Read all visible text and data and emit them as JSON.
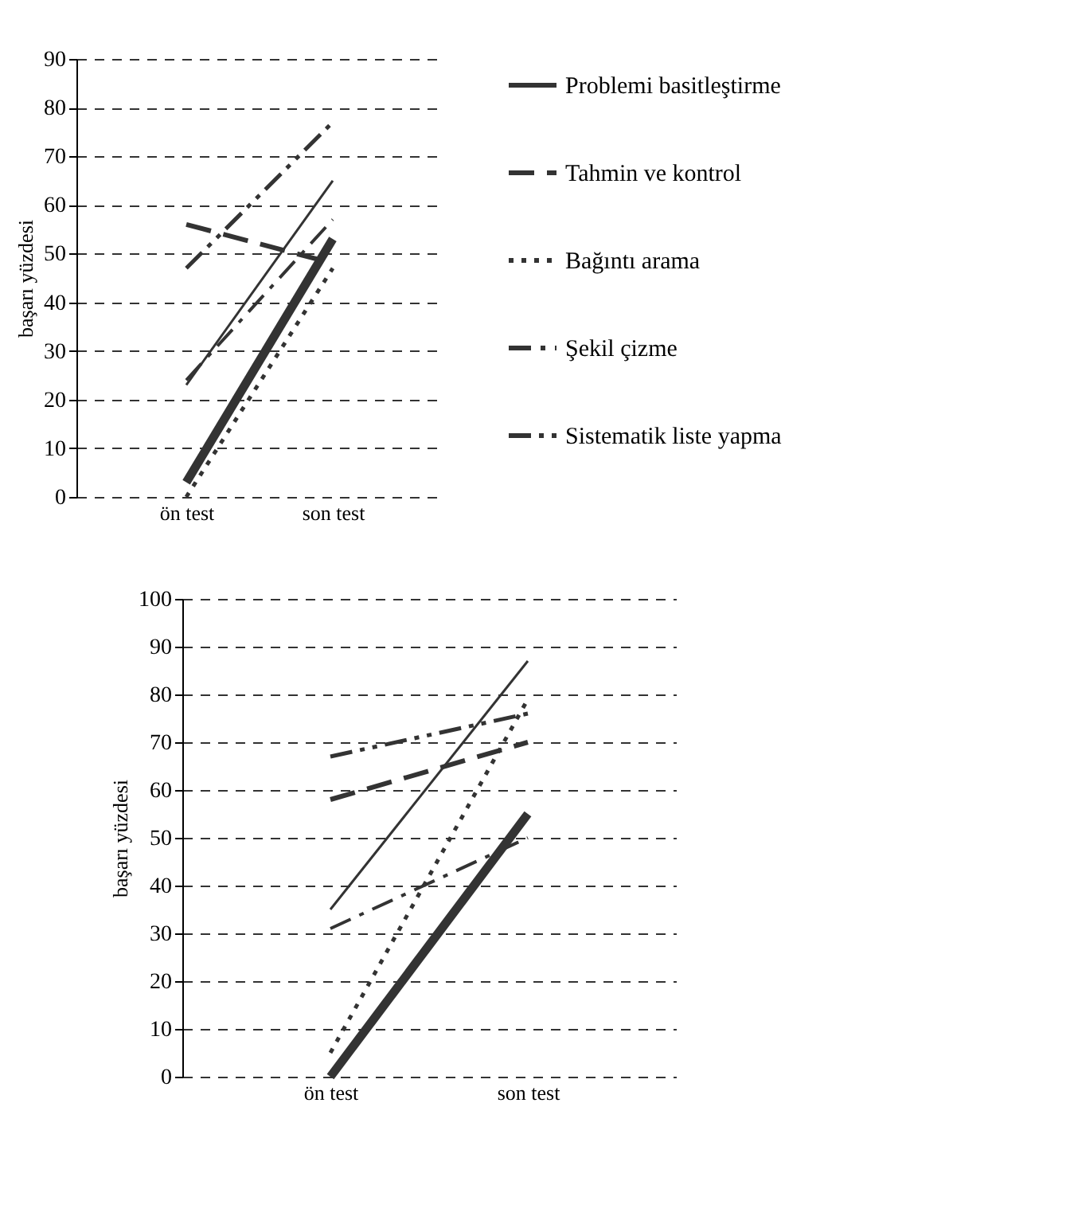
{
  "chart_data": [
    {
      "type": "line",
      "ylabel": "başarı yüzdesi",
      "categories": [
        "ön test",
        "son test"
      ],
      "ylim": [
        0,
        90
      ],
      "yticks": [
        0,
        10,
        20,
        30,
        40,
        50,
        60,
        70,
        80,
        90
      ],
      "grid": "y",
      "legend": "right",
      "series": [
        {
          "name": "Problemi basitleştirme",
          "color": "#333333",
          "line_style": "solid",
          "values": [
            23,
            65
          ]
        },
        {
          "name": "Tahmin ve kontrol",
          "color": "#333333",
          "line_style": "dashed",
          "values": [
            56,
            48
          ]
        },
        {
          "name": "Bağıntı arama",
          "color": "#333333",
          "line_style": "dotted",
          "values": [
            0,
            47
          ]
        },
        {
          "name": "Şekil çizme",
          "color": "#333333",
          "line_style": "dashdot",
          "values": [
            24,
            57
          ]
        },
        {
          "name": "Sistematik liste yapma",
          "color": "#333333",
          "line_style": "dashdotdot",
          "values": [
            47,
            77
          ]
        },
        {
          "color": "#333333",
          "line_style": "solid",
          "values": [
            3,
            53
          ]
        }
      ]
    },
    {
      "type": "line",
      "ylabel": "başarı yüzdesi",
      "categories": [
        "ön test",
        "son test"
      ],
      "ylim": [
        0,
        100
      ],
      "yticks": [
        0,
        10,
        20,
        30,
        40,
        50,
        60,
        70,
        80,
        90,
        100
      ],
      "grid": "y",
      "series": [
        {
          "color": "#333333",
          "line_style": "solid",
          "values": [
            35,
            87
          ]
        },
        {
          "color": "#333333",
          "line_style": "dashed",
          "values": [
            58,
            70
          ]
        },
        {
          "color": "#333333",
          "line_style": "dotted",
          "values": [
            5,
            79
          ]
        },
        {
          "color": "#333333",
          "line_style": "dashdot",
          "values": [
            31,
            50
          ]
        },
        {
          "color": "#333333",
          "line_style": "dashdotdot",
          "values": [
            67,
            76
          ]
        },
        {
          "color": "#333333",
          "line_style": "solid",
          "values": [
            0,
            55
          ]
        }
      ]
    }
  ]
}
